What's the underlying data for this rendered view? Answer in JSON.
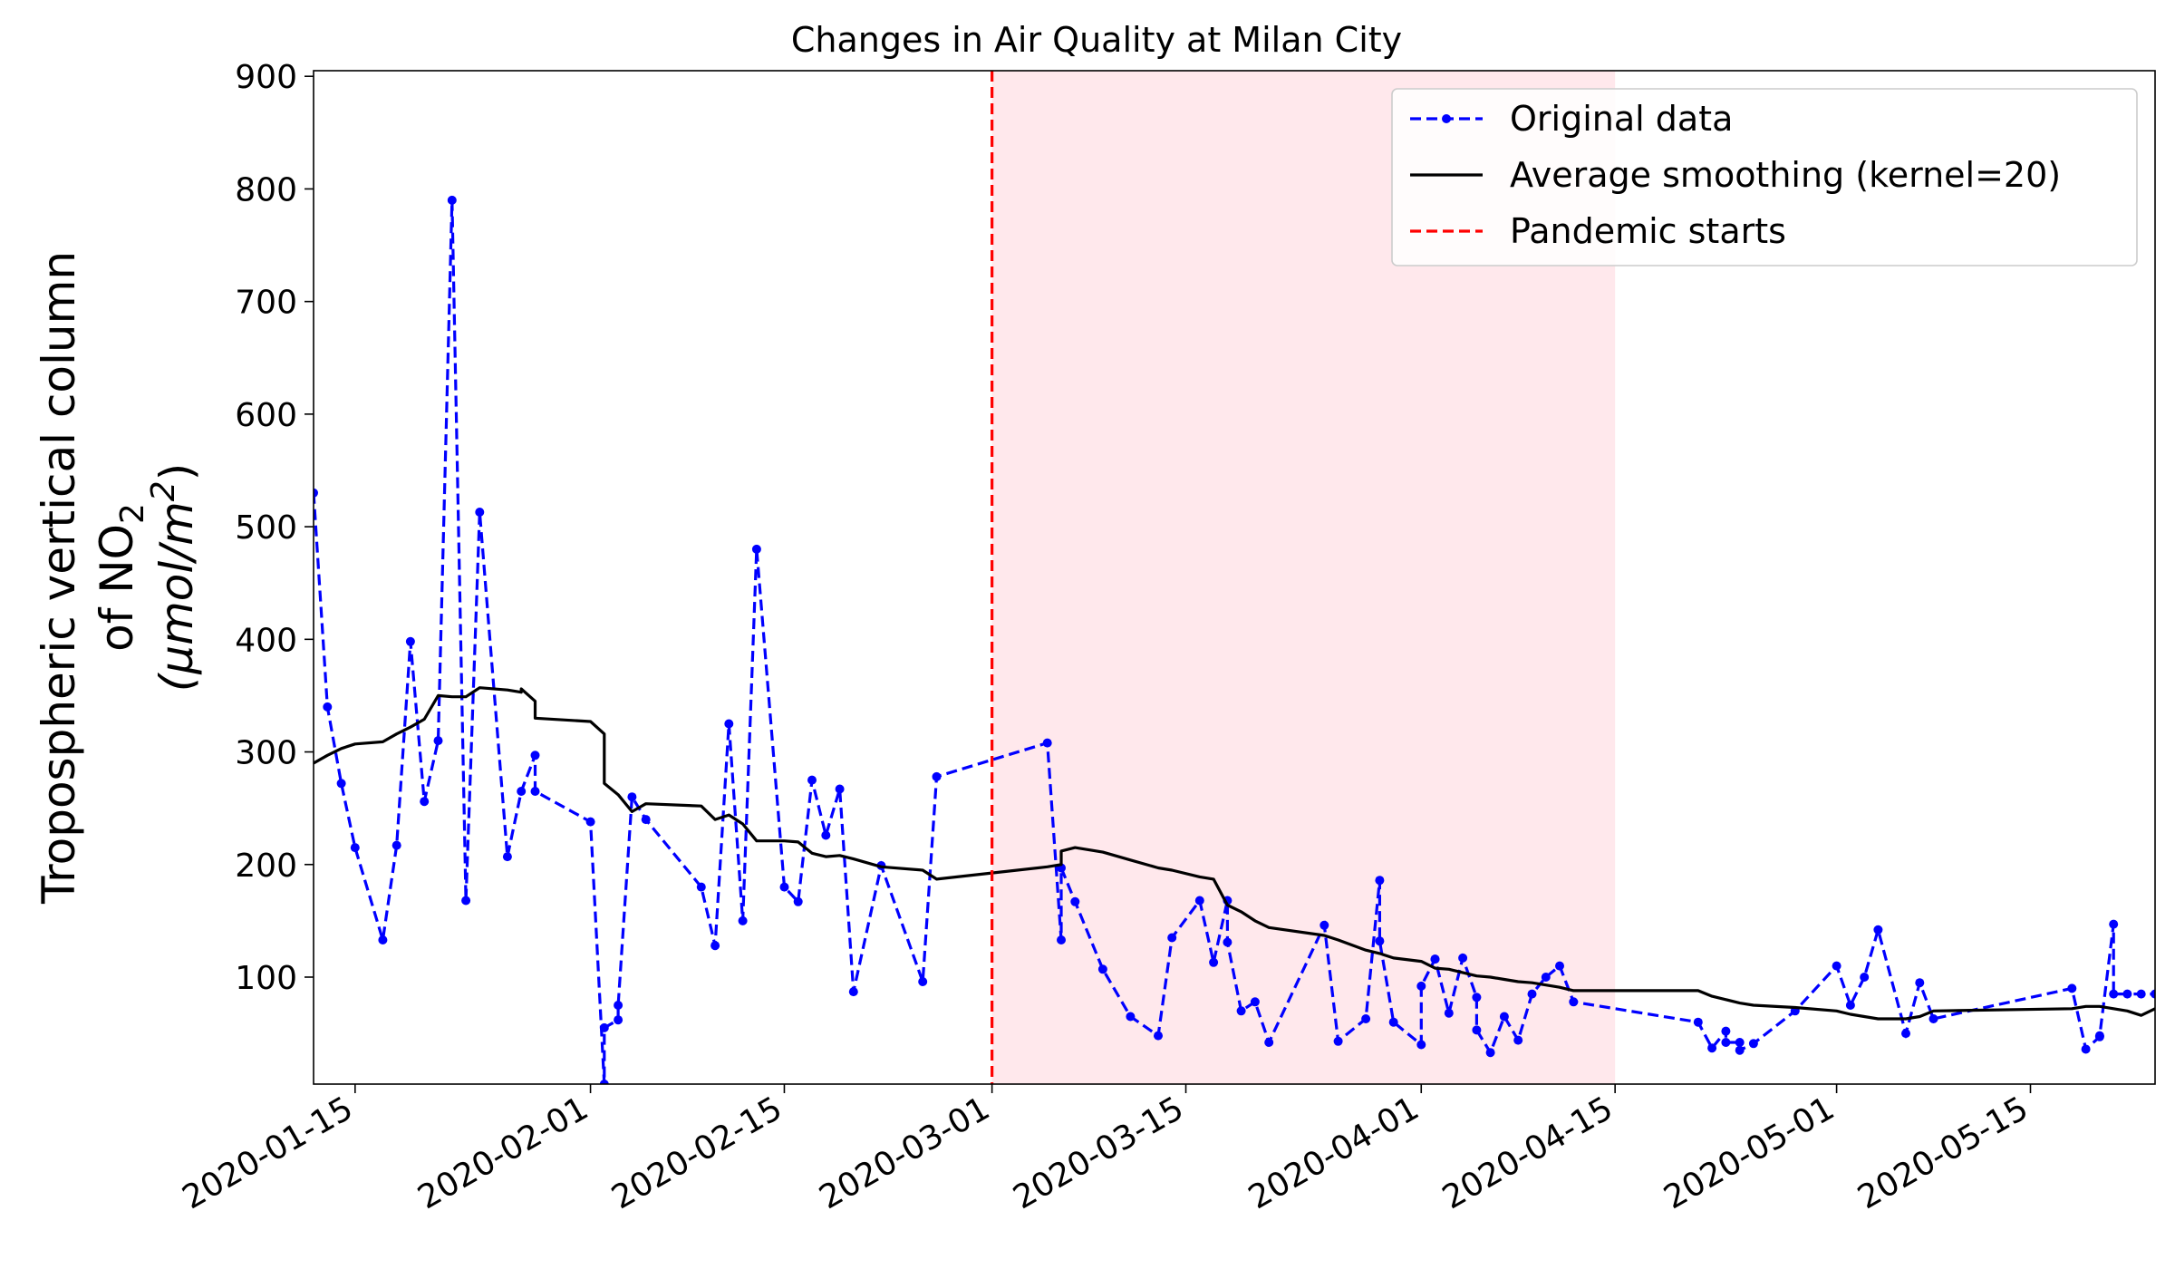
{
  "chart_data": {
    "type": "line",
    "title": "Changes in Air Quality at Milan City",
    "ylabel_line1": "Tropospheric vertical column",
    "ylabel_line2_prefix": "of NO",
    "ylabel_line2_sub": "2",
    "ylabel_line3": "(μmol/m",
    "ylabel_line3_sup": "2",
    "ylabel_line3_end": ")",
    "xlim": [
      "2020-01-12",
      "2020-05-24"
    ],
    "ylim": [
      5,
      905
    ],
    "yticks": [
      100,
      200,
      300,
      400,
      500,
      600,
      700,
      800,
      900
    ],
    "xticks": [
      "2020-01-15",
      "2020-02-01",
      "2020-02-15",
      "2020-03-01",
      "2020-03-15",
      "2020-04-01",
      "2020-04-15",
      "2020-05-01",
      "2020-05-15"
    ],
    "shaded_region": {
      "start": "2020-03-01",
      "end": "2020-04-15",
      "color": "#ffe8ec"
    },
    "pandemic_line": {
      "x": "2020-03-01",
      "color": "#ff0000"
    },
    "legend_position": "top-right",
    "grid": false,
    "series": [
      {
        "name": "Original data",
        "color": "#0000ff",
        "style": "dashed-markers",
        "x": [
          "2020-01-12",
          "2020-01-13",
          "2020-01-14",
          "2020-01-15",
          "2020-01-17",
          "2020-01-18",
          "2020-01-19",
          "2020-01-20",
          "2020-01-21",
          "2020-01-22",
          "2020-01-23",
          "2020-01-24",
          "2020-01-26",
          "2020-01-27",
          "2020-01-28",
          "2020-01-28",
          "2020-02-01",
          "2020-02-02",
          "2020-02-02",
          "2020-02-03",
          "2020-02-03",
          "2020-02-04",
          "2020-02-05",
          "2020-02-09",
          "2020-02-10",
          "2020-02-11",
          "2020-02-12",
          "2020-02-13",
          "2020-02-15",
          "2020-02-16",
          "2020-02-17",
          "2020-02-18",
          "2020-02-19",
          "2020-02-20",
          "2020-02-22",
          "2020-02-25",
          "2020-02-26",
          "2020-03-05",
          "2020-03-06",
          "2020-03-06",
          "2020-03-07",
          "2020-03-09",
          "2020-03-11",
          "2020-03-13",
          "2020-03-14",
          "2020-03-16",
          "2020-03-17",
          "2020-03-18",
          "2020-03-18",
          "2020-03-19",
          "2020-03-20",
          "2020-03-21",
          "2020-03-25",
          "2020-03-26",
          "2020-03-28",
          "2020-03-29",
          "2020-03-29",
          "2020-03-30",
          "2020-04-01",
          "2020-04-01",
          "2020-04-02",
          "2020-04-02",
          "2020-04-03",
          "2020-04-04",
          "2020-04-05",
          "2020-04-05",
          "2020-04-06",
          "2020-04-07",
          "2020-04-08",
          "2020-04-09",
          "2020-04-10",
          "2020-04-11",
          "2020-04-12",
          "2020-04-21",
          "2020-04-22",
          "2020-04-23",
          "2020-04-23",
          "2020-04-24",
          "2020-04-24",
          "2020-04-25",
          "2020-04-28",
          "2020-05-01",
          "2020-05-02",
          "2020-05-03",
          "2020-05-04",
          "2020-05-06",
          "2020-05-07",
          "2020-05-08",
          "2020-05-18",
          "2020-05-19",
          "2020-05-20",
          "2020-05-20",
          "2020-05-21",
          "2020-05-21",
          "2020-05-22",
          "2020-05-23",
          "2020-05-24"
        ],
        "y": [
          530,
          340,
          272,
          215,
          133,
          217,
          398,
          256,
          310,
          790,
          168,
          513,
          207,
          265,
          297,
          265,
          238,
          5,
          55,
          62,
          75,
          260,
          240,
          180,
          128,
          325,
          150,
          480,
          180,
          167,
          275,
          226,
          267,
          87,
          199,
          96,
          278,
          308,
          133,
          197,
          167,
          107,
          65,
          48,
          135,
          168,
          113,
          168,
          131,
          70,
          78,
          42,
          146,
          43,
          63,
          186,
          132,
          60,
          40,
          92,
          116,
          116,
          68,
          117,
          82,
          53,
          33,
          65,
          44,
          85,
          100,
          110,
          78,
          60,
          37,
          52,
          42,
          42,
          35,
          41,
          70,
          110,
          75,
          100,
          142,
          50,
          95,
          63,
          90,
          36,
          47,
          48,
          147,
          85,
          85,
          85,
          85
        ]
      },
      {
        "name": "Average smoothing (kernel=20)",
        "color": "#000000",
        "style": "solid",
        "x": [
          "2020-01-12",
          "2020-01-13",
          "2020-01-14",
          "2020-01-15",
          "2020-01-17",
          "2020-01-18",
          "2020-01-19",
          "2020-01-20",
          "2020-01-21",
          "2020-01-22",
          "2020-01-23",
          "2020-01-24",
          "2020-01-26",
          "2020-01-27",
          "2020-01-27",
          "2020-01-28",
          "2020-01-28",
          "2020-02-01",
          "2020-02-02",
          "2020-02-02",
          "2020-02-03",
          "2020-02-04",
          "2020-02-05",
          "2020-02-09",
          "2020-02-10",
          "2020-02-11",
          "2020-02-12",
          "2020-02-13",
          "2020-02-15",
          "2020-02-16",
          "2020-02-17",
          "2020-02-18",
          "2020-02-19",
          "2020-02-20",
          "2020-02-22",
          "2020-02-25",
          "2020-02-26",
          "2020-03-05",
          "2020-03-06",
          "2020-03-06",
          "2020-03-07",
          "2020-03-09",
          "2020-03-11",
          "2020-03-13",
          "2020-03-14",
          "2020-03-16",
          "2020-03-17",
          "2020-03-18",
          "2020-03-19",
          "2020-03-20",
          "2020-03-21",
          "2020-03-25",
          "2020-03-26",
          "2020-03-28",
          "2020-03-29",
          "2020-03-30",
          "2020-04-01",
          "2020-04-02",
          "2020-04-03",
          "2020-04-05",
          "2020-04-06",
          "2020-04-07",
          "2020-04-08",
          "2020-04-09",
          "2020-04-10",
          "2020-04-11",
          "2020-04-12",
          "2020-04-21",
          "2020-04-22",
          "2020-04-23",
          "2020-04-24",
          "2020-04-25",
          "2020-04-28",
          "2020-05-01",
          "2020-05-02",
          "2020-05-04",
          "2020-05-06",
          "2020-05-07",
          "2020-05-08",
          "2020-05-18",
          "2020-05-19",
          "2020-05-20",
          "2020-05-21",
          "2020-05-22",
          "2020-05-23",
          "2020-05-24"
        ],
        "y": [
          290,
          297,
          303,
          307,
          309,
          316,
          322,
          329,
          350,
          349,
          349,
          357,
          355,
          353,
          356,
          345,
          330,
          327,
          316,
          272,
          262,
          247,
          254,
          252,
          240,
          244,
          236,
          221,
          221,
          220,
          210,
          207,
          208,
          205,
          198,
          195,
          187,
          198,
          200,
          212,
          215,
          211,
          204,
          197,
          195,
          189,
          187,
          164,
          158,
          150,
          144,
          137,
          133,
          124,
          121,
          117,
          114,
          108,
          107,
          101,
          100,
          98,
          96,
          95,
          93,
          91,
          88,
          88,
          83,
          80,
          77,
          75,
          73,
          70,
          67,
          63,
          63,
          65,
          70,
          72,
          74,
          74,
          72,
          70,
          66,
          72
        ]
      },
      {
        "name": "Pandemic starts",
        "color": "#ff0000",
        "style": "dashed"
      }
    ]
  }
}
